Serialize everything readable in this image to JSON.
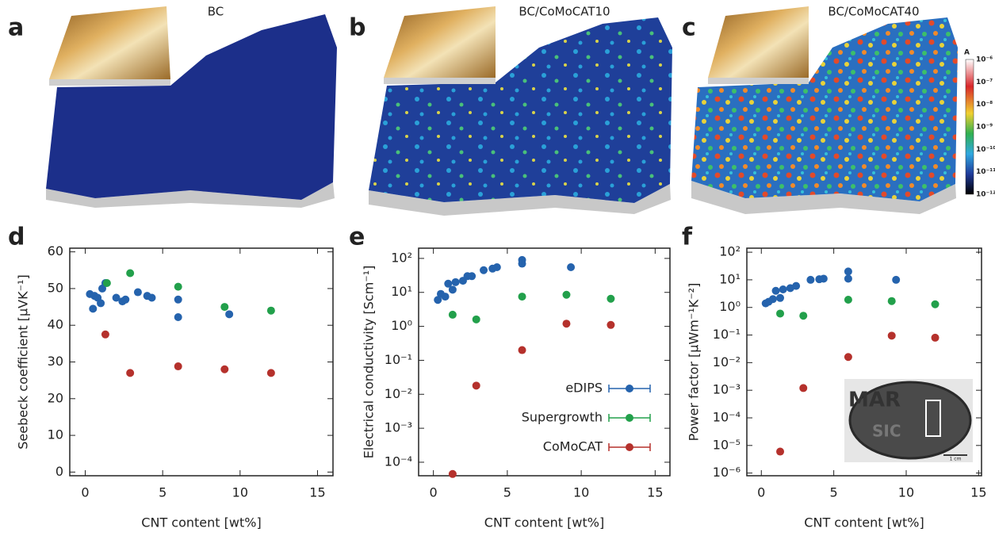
{
  "panels": {
    "labels": [
      "a",
      "b",
      "c",
      "d",
      "e",
      "f"
    ]
  },
  "images": [
    {
      "title": "BC"
    },
    {
      "title": "BC/CoMoCAT10"
    },
    {
      "title": "BC/CoMoCAT40"
    }
  ],
  "colorbar": {
    "unit": "A",
    "labels": [
      "10⁻⁶",
      "10⁻⁷",
      "10⁻⁸",
      "10⁻⁹",
      "10⁻¹⁰",
      "10⁻¹¹",
      "10⁻¹²"
    ]
  },
  "photo": {
    "texts": [
      "MAR",
      "SIC"
    ],
    "scale": "1 cm"
  },
  "chart_data": [
    {
      "type": "scatter",
      "x_label": "CNT content [wt%]",
      "y_label": "Seebeck coefficient [μVK⁻¹]",
      "xlim": [
        -1,
        16
      ],
      "xticks": [
        0,
        5,
        10,
        15
      ],
      "ylim": [
        -1,
        61
      ],
      "yticks": [
        0,
        10,
        20,
        30,
        40,
        50,
        60
      ],
      "log_y": false,
      "legend": false,
      "series": [
        {
          "color": "#2563ad",
          "x": [
            0.3,
            0.5,
            0.6,
            0.8,
            1,
            1.1,
            1.3,
            2,
            2.4,
            2.6,
            3.4,
            4,
            4.3,
            6,
            6,
            9.3
          ],
          "values": [
            48.5,
            44.5,
            48,
            47.5,
            46,
            50,
            51.5,
            47.5,
            46.5,
            47,
            49,
            48,
            47.5,
            47,
            42.2,
            43
          ]
        },
        {
          "color": "#22a04b",
          "x": [
            1.4,
            2.9,
            6,
            9,
            12
          ],
          "values": [
            51.5,
            54.2,
            50.5,
            45,
            44
          ]
        },
        {
          "color": "#b5312c",
          "x": [
            1.3,
            2.9,
            6,
            9,
            12
          ],
          "values": [
            37.5,
            27,
            28.8,
            28,
            27
          ]
        }
      ]
    },
    {
      "type": "scatter",
      "x_label": "CNT content [wt%]",
      "y_label": "Electrical conductivity [Scm⁻¹]",
      "xlim": [
        -1,
        16
      ],
      "xticks": [
        0,
        5,
        10,
        15
      ],
      "ylim": [
        4e-05,
        200
      ],
      "log_y": true,
      "legend": true,
      "yticks": [
        {
          "value": 0.0001,
          "label": "10⁻⁴"
        },
        {
          "value": 0.001,
          "label": "10⁻³"
        },
        {
          "value": 0.01,
          "label": "10⁻²"
        },
        {
          "value": 0.1,
          "label": "10⁻¹"
        },
        {
          "value": 1,
          "label": "10⁰"
        },
        {
          "value": 10,
          "label": "10¹"
        },
        {
          "value": 100,
          "label": "10²"
        }
      ],
      "series": [
        {
          "name": "eDIPS",
          "color": "#2563ad",
          "x": [
            0.3,
            0.5,
            0.8,
            1,
            1.3,
            1.5,
            2,
            2.3,
            2.6,
            3.4,
            4,
            4.3,
            6,
            6,
            9.3
          ],
          "values": [
            6,
            9,
            7.5,
            18,
            12,
            20,
            22,
            30,
            30,
            45,
            50,
            55,
            90,
            70,
            55
          ]
        },
        {
          "name": "Supergrowth",
          "color": "#22a04b",
          "x": [
            1.3,
            2.9,
            6,
            9,
            12
          ],
          "values": [
            2.2,
            1.6,
            7.5,
            8.5,
            6.5
          ]
        },
        {
          "name": "CoMoCAT",
          "color": "#b5312c",
          "x": [
            1.3,
            2.9,
            6,
            9,
            12
          ],
          "values": [
            4.5e-05,
            0.018,
            0.2,
            1.2,
            1.1
          ]
        }
      ]
    },
    {
      "type": "scatter",
      "x_label": "CNT content [wt%]",
      "y_label": "Power factor [μWm⁻¹K⁻²]",
      "xlim": [
        -1,
        15.2
      ],
      "xticks": [
        0,
        5,
        10,
        15
      ],
      "ylim": [
        8e-07,
        140
      ],
      "log_y": true,
      "legend": false,
      "yticks": [
        {
          "value": 1e-06,
          "label": "10⁻⁶"
        },
        {
          "value": 1e-05,
          "label": "10⁻⁵"
        },
        {
          "value": 0.0001,
          "label": "10⁻⁴"
        },
        {
          "value": 0.001,
          "label": "10⁻³"
        },
        {
          "value": 0.01,
          "label": "10⁻²"
        },
        {
          "value": 0.1,
          "label": "10⁻¹"
        },
        {
          "value": 1,
          "label": "10⁰"
        },
        {
          "value": 10,
          "label": "10¹"
        },
        {
          "value": 100,
          "label": "10²"
        }
      ],
      "series": [
        {
          "color": "#2563ad",
          "x": [
            0.3,
            0.5,
            0.8,
            1,
            1.3,
            1.5,
            2,
            2.4,
            3.4,
            4,
            4.3,
            6,
            6,
            9.3
          ],
          "values": [
            1.4,
            1.6,
            2,
            4,
            2.2,
            4.5,
            5,
            6,
            10,
            10.5,
            11,
            20,
            11,
            10
          ]
        },
        {
          "color": "#22a04b",
          "x": [
            1.3,
            2.9,
            6,
            9,
            12
          ],
          "values": [
            0.6,
            0.5,
            1.9,
            1.7,
            1.3
          ]
        },
        {
          "color": "#b5312c",
          "x": [
            1.3,
            2.9,
            6,
            9,
            12
          ],
          "values": [
            6e-06,
            0.0012,
            0.016,
            0.095,
            0.08
          ]
        }
      ]
    }
  ]
}
